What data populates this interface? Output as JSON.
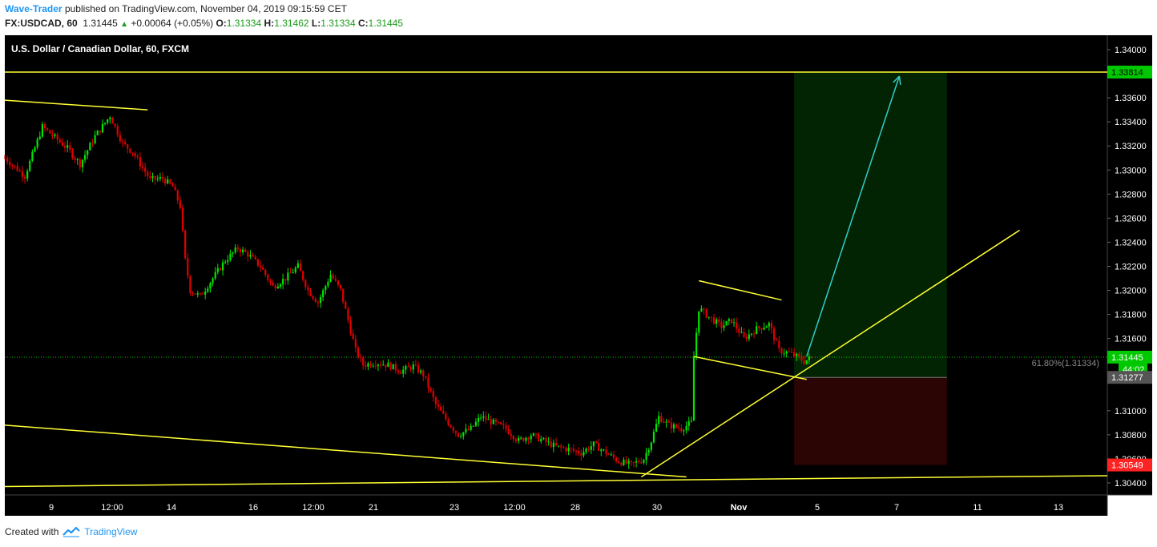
{
  "header": {
    "author": "Wave-Trader",
    "published_text": "published on TradingView.com, November 04, 2019 09:15:59 CET",
    "symbol": "FX:USDCAD, 60",
    "last": "1.31445",
    "change_arrow": "▲",
    "change": "+0.00064 (+0.05%)",
    "o_label": "O:",
    "o_value": "1.31334",
    "h_label": "H:",
    "h_value": "1.31462",
    "l_label": "L:",
    "l_value": "1.31334",
    "c_label": "C:",
    "c_value": "1.31445"
  },
  "footer": {
    "created_with": "Created with",
    "brand": "TradingView",
    "logo_icon": "tradingview-logo-icon"
  },
  "colors": {
    "background": "#000000",
    "bull": "#00e600",
    "bear": "#e00000",
    "trendline": "#ffff33",
    "arrow": "#33cccc",
    "profit_zone": "#032403",
    "loss_zone": "#2b0404",
    "current_price": "#00c800",
    "stop_price": "#ff2222"
  },
  "chart_data": {
    "type": "candlestick",
    "title": "U.S. Dollar / Canadian Dollar, 60, FXCM",
    "ylim": [
      1.303,
      1.3412
    ],
    "y_ticks": [
      "1.34000",
      "1.33600",
      "1.33400",
      "1.33200",
      "1.33000",
      "1.32800",
      "1.32600",
      "1.32400",
      "1.32200",
      "1.32000",
      "1.31800",
      "1.31600",
      "1.31000",
      "1.30800",
      "1.30600",
      "1.30400"
    ],
    "x_ticks": [
      "9",
      "12:00",
      "14",
      "16",
      "12:00",
      "21",
      "23",
      "12:00",
      "28",
      "30",
      "Nov",
      "5",
      "7",
      "11",
      "13"
    ],
    "price_labels": [
      {
        "value": "1.33814",
        "kind": "target"
      },
      {
        "value": "1.31445",
        "kind": "current"
      },
      {
        "value": "44:02",
        "kind": "countdown"
      },
      {
        "value": "1.31277",
        "kind": "entry"
      },
      {
        "value": "1.30549",
        "kind": "stop"
      }
    ],
    "fib_label": "61.80%(1.31334)",
    "path_points": [
      [
        0,
        1.331
      ],
      [
        8,
        1.3295
      ],
      [
        15,
        1.3336
      ],
      [
        25,
        1.3318
      ],
      [
        30,
        1.3305
      ],
      [
        36,
        1.3328
      ],
      [
        42,
        1.3345
      ],
      [
        47,
        1.3322
      ],
      [
        51,
        1.3315
      ],
      [
        58,
        1.3292
      ],
      [
        63,
        1.3293
      ],
      [
        67,
        1.3286
      ],
      [
        70,
        1.327
      ],
      [
        72,
        1.3225
      ],
      [
        74,
        1.32
      ],
      [
        78,
        1.3195
      ],
      [
        83,
        1.321
      ],
      [
        88,
        1.3225
      ],
      [
        93,
        1.3235
      ],
      [
        97,
        1.323
      ],
      [
        102,
        1.322
      ],
      [
        107,
        1.3203
      ],
      [
        112,
        1.321
      ],
      [
        117,
        1.322
      ],
      [
        121,
        1.32
      ],
      [
        125,
        1.319
      ],
      [
        130,
        1.3213
      ],
      [
        134,
        1.32
      ],
      [
        137,
        1.3175
      ],
      [
        140,
        1.315
      ],
      [
        143,
        1.3138
      ],
      [
        148,
        1.314
      ],
      [
        153,
        1.3138
      ],
      [
        158,
        1.3133
      ],
      [
        163,
        1.3137
      ],
      [
        167,
        1.313
      ],
      [
        172,
        1.3105
      ],
      [
        177,
        1.309
      ],
      [
        181,
        1.308
      ],
      [
        186,
        1.3085
      ],
      [
        190,
        1.3095
      ],
      [
        195,
        1.309
      ],
      [
        200,
        1.3085
      ],
      [
        205,
        1.3075
      ],
      [
        210,
        1.308
      ],
      [
        215,
        1.3075
      ],
      [
        220,
        1.307
      ],
      [
        225,
        1.3068
      ],
      [
        230,
        1.3065
      ],
      [
        235,
        1.3072
      ],
      [
        240,
        1.3065
      ],
      [
        245,
        1.3058
      ],
      [
        250,
        1.3055
      ],
      [
        255,
        1.306
      ],
      [
        258,
        1.3075
      ],
      [
        261,
        1.3095
      ],
      [
        265,
        1.3088
      ],
      [
        270,
        1.3085
      ],
      [
        274,
        1.309
      ],
      [
        275,
        1.3145
      ],
      [
        277,
        1.3185
      ],
      [
        281,
        1.3178
      ],
      [
        286,
        1.317
      ],
      [
        290,
        1.3175
      ],
      [
        295,
        1.316
      ],
      [
        300,
        1.3168
      ],
      [
        305,
        1.3172
      ],
      [
        309,
        1.315
      ],
      [
        313,
        1.3148
      ],
      [
        316,
        1.3145
      ],
      [
        319,
        1.3141
      ],
      [
        322,
        1.3144
      ]
    ],
    "trendlines": [
      {
        "from": [
          0,
          1.3358
        ],
        "to": [
          57,
          1.335
        ]
      },
      {
        "from": [
          0,
          1.3088
        ],
        "to": [
          272,
          1.3045
        ]
      },
      {
        "from": [
          0,
          1.3037
        ],
        "to": [
          440,
          1.3046
        ]
      },
      {
        "from": [
          254,
          1.3045
        ],
        "to": [
          405,
          1.325
        ]
      },
      {
        "from": [
          277,
          1.3208
        ],
        "to": [
          310,
          1.3192
        ]
      },
      {
        "from": [
          275,
          1.3145
        ],
        "to": [
          320,
          1.3126
        ]
      },
      {
        "from": [
          0,
          1.33814
        ],
        "to": [
          440,
          1.33814
        ]
      }
    ],
    "position": {
      "x0": 315,
      "x1": 376,
      "target": 1.33814,
      "entry": 1.31277,
      "stop": 1.30549
    },
    "arrow": {
      "from": [
        320,
        1.3145
      ],
      "to": [
        357,
        1.3378
      ]
    },
    "current_price": 1.31445
  }
}
